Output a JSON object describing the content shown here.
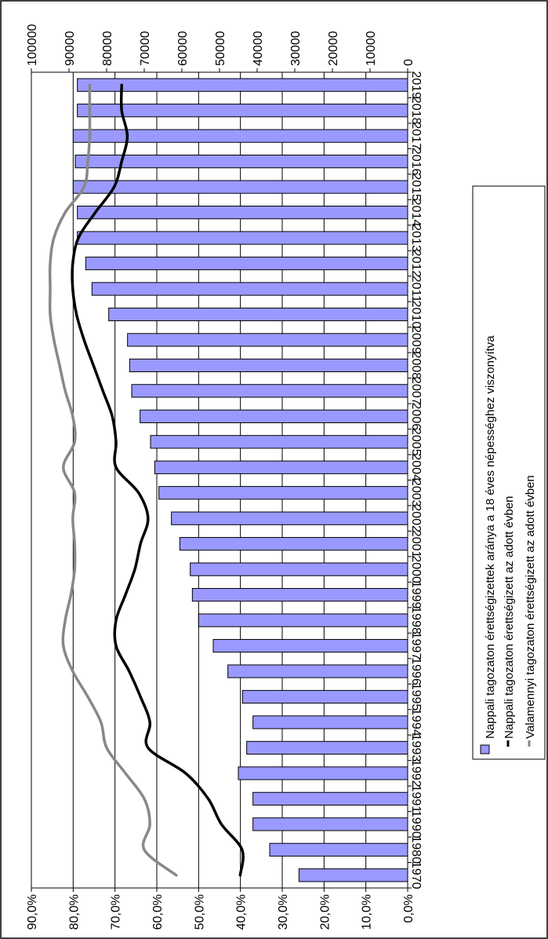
{
  "chart_data": {
    "type": "bar",
    "orientation": "rotated-90-clockwise",
    "categories": [
      "1970",
      "1980",
      "1990",
      "1991",
      "1992",
      "1993",
      "1994",
      "1995",
      "1996",
      "1997",
      "1998",
      "1999",
      "2000",
      "2001",
      "2002",
      "2003",
      "2004",
      "2005",
      "2006",
      "2007",
      "2008",
      "2009",
      "2010",
      "2011",
      "2012",
      "2013",
      "2014",
      "2015",
      "2016",
      "2017",
      "2018",
      "2019"
    ],
    "primary_axis": {
      "ylim": [
        0,
        0.9
      ],
      "ticks": [
        "0,0%",
        "10,0%",
        "20,0%",
        "30,0%",
        "40,0%",
        "50,0%",
        "60,0%",
        "70,0%",
        "80,0%",
        "90,0%"
      ]
    },
    "secondary_axis": {
      "ylim": [
        0,
        100000
      ],
      "ticks": [
        "0",
        "10000",
        "20000",
        "30000",
        "40000",
        "50000",
        "60000",
        "70000",
        "80000",
        "90000",
        "100000"
      ]
    },
    "series": [
      {
        "name": "Nappali tagozaton érettségizettek aránya a 18 éves népességhez viszonyítva",
        "kind": "bar",
        "axis": "primary",
        "color": "#9999ff",
        "values": [
          0.26,
          0.33,
          0.37,
          0.37,
          0.405,
          0.385,
          0.37,
          0.395,
          0.43,
          0.465,
          0.5,
          0.515,
          0.52,
          0.545,
          0.565,
          0.595,
          0.605,
          0.615,
          0.64,
          0.66,
          0.665,
          0.67,
          0.715,
          0.755,
          0.77,
          0.79,
          0.79,
          0.8,
          0.795,
          0.8,
          0.79,
          0.79
        ]
      },
      {
        "name": "Nappali tagozaton érettségizett az adott évben",
        "kind": "line",
        "axis": "secondary",
        "color": "#000000",
        "values": [
          44500,
          44000,
          49500,
          53000,
          59000,
          69000,
          68500,
          71000,
          74000,
          77500,
          77500,
          75000,
          72500,
          71000,
          69000,
          71500,
          77500,
          77500,
          78500,
          81000,
          83500,
          86000,
          88000,
          89000,
          89000,
          87500,
          83000,
          78000,
          76000,
          74500,
          76000,
          76000
        ]
      },
      {
        "name": "Valamennyi tagozaton érettségizett az adott évben",
        "kind": "line",
        "axis": "secondary",
        "color": "#888888",
        "values": [
          61500,
          70000,
          68500,
          70000,
          75000,
          80000,
          81500,
          85000,
          89000,
          91500,
          91000,
          89500,
          88500,
          88500,
          89000,
          88500,
          91500,
          88500,
          89000,
          91000,
          92500,
          94000,
          95000,
          95000,
          95000,
          94000,
          91000,
          86000,
          85000,
          84500,
          84500,
          84500
        ]
      }
    ],
    "grid": true,
    "legend": "right"
  }
}
